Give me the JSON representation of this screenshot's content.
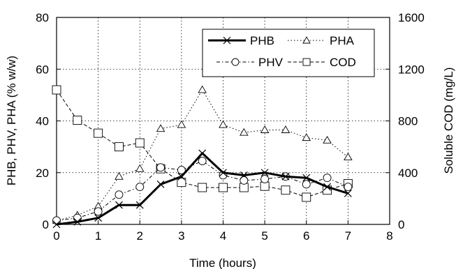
{
  "chart_data": {
    "type": "line",
    "xlabel": "Time (hours)",
    "ylabel_left": "PHB, PHV, PHA (% w/w)",
    "ylabel_right": "Soluble COD (mg/L)",
    "xlim": [
      0,
      8
    ],
    "ylim_left": [
      0,
      80
    ],
    "ylim_right": [
      0,
      1600
    ],
    "x_ticks": [
      "0",
      "1",
      "2",
      "3",
      "4",
      "5",
      "6",
      "7",
      "8"
    ],
    "y_left_ticks": [
      "0",
      "20",
      "40",
      "60",
      "80"
    ],
    "y_right_ticks": [
      "0",
      "400",
      "800",
      "1200",
      "1600"
    ],
    "grid": true,
    "legend_position": "top-right",
    "series": [
      {
        "name": "PHB",
        "axis": "left",
        "marker": "x",
        "line": "solid-thick",
        "x": [
          0,
          0.5,
          1,
          1.5,
          2,
          2.5,
          3,
          3.5,
          4,
          4.5,
          5,
          5.5,
          6,
          6.5,
          7
        ],
        "y": [
          0,
          1.0,
          2.5,
          7.5,
          7.5,
          15.5,
          18.5,
          27.5,
          20.0,
          19.0,
          20.0,
          18.5,
          18.0,
          14.5,
          12.0
        ]
      },
      {
        "name": "PHA",
        "axis": "left",
        "marker": "triangle",
        "line": "dotted",
        "x": [
          0,
          0.5,
          1,
          1.5,
          2,
          2.5,
          3,
          3.5,
          4,
          4.5,
          5,
          5.5,
          6,
          6.5,
          7
        ],
        "y": [
          1.5,
          3.5,
          7.0,
          18.5,
          21.5,
          37.0,
          38.5,
          52.0,
          38.5,
          35.5,
          36.5,
          36.5,
          33.5,
          32.5,
          26.0
        ]
      },
      {
        "name": "PHV",
        "axis": "left",
        "marker": "circle",
        "line": "dash-dot",
        "x": [
          0,
          0.5,
          1,
          1.5,
          2,
          2.5,
          3,
          3.5,
          4,
          4.5,
          5,
          5.5,
          6,
          6.5,
          7
        ],
        "y": [
          1.5,
          2.5,
          5.0,
          11.5,
          14.5,
          22.0,
          21.0,
          24.5,
          19.0,
          17.0,
          17.5,
          18.5,
          15.5,
          18.0,
          14.5
        ]
      },
      {
        "name": "COD",
        "axis": "right",
        "marker": "square",
        "line": "dashed",
        "x": [
          0,
          0.5,
          1,
          1.5,
          2,
          2.5,
          3,
          3.5,
          4,
          4.5,
          5,
          5.5,
          6,
          6.5,
          7
        ],
        "y": [
          1040,
          805,
          705,
          600,
          630,
          430,
          325,
          285,
          285,
          285,
          295,
          265,
          210,
          265,
          315
        ]
      }
    ]
  },
  "legend": {
    "phb": "PHB",
    "pha": "PHA",
    "phv": "PHV",
    "cod": "COD"
  }
}
